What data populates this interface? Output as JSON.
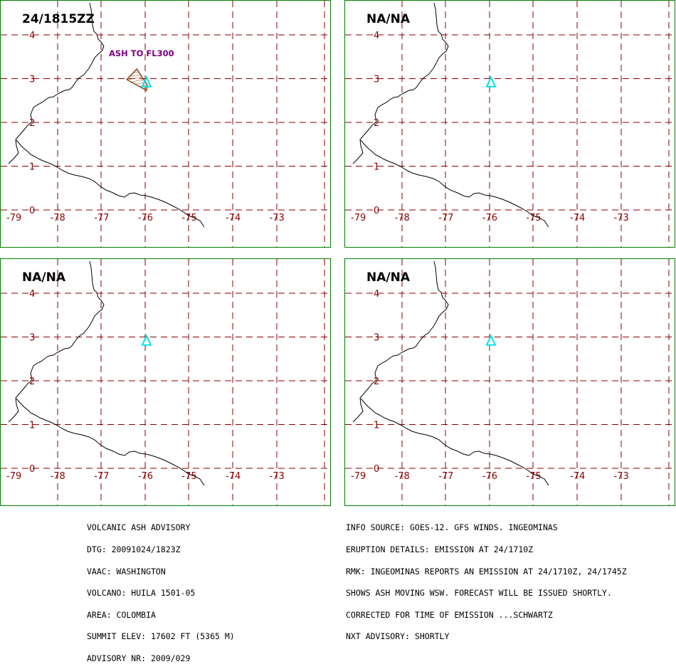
{
  "map": {
    "x_ticks": [
      "-79",
      "-78",
      "-77",
      "-76",
      "-75",
      "-74",
      "-73"
    ],
    "y_ticks": [
      "0",
      "1",
      "2",
      "3",
      "4"
    ],
    "lon_range": [
      -79,
      -72.3
    ],
    "lat_range": [
      -0.15,
      4.8
    ],
    "volcano": {
      "lon": -76.03,
      "lat": 2.93
    },
    "ash_polygon": [
      [
        -76.4,
        2.98
      ],
      [
        -76.17,
        3.22
      ],
      [
        -75.93,
        2.85
      ],
      [
        -75.95,
        2.73
      ]
    ]
  },
  "panels": [
    {
      "title": "24/1815ZZ",
      "ash_label": "ASH TO FL300",
      "show_ash": true
    },
    {
      "title": "NA/NA",
      "show_ash": false
    },
    {
      "title": "NA/NA",
      "show_ash": false
    },
    {
      "title": "NA/NA",
      "show_ash": false
    }
  ],
  "advisory": {
    "left": [
      "VOLCANIC ASH ADVISORY",
      "DTG: 20091024/1823Z",
      "VAAC: WASHINGTON",
      "VOLCANO: HUILA 1501-05",
      "AREA: COLOMBIA",
      "SUMMIT ELEV: 17602 FT (5365 M)",
      "ADVISORY NR: 2009/029"
    ],
    "right": [
      "INFO SOURCE: GOES-12. GFS WINDS. INGEOMINAS",
      "ERUPTION DETAILS: EMISSION AT 24/1710Z",
      "RMK: INGEOMINAS REPORTS AN EMISSION AT 24/1710Z, 24/1745Z",
      "SHOWS ASH MOVING WSW. FORECAST WILL BE ISSUED SHORTLY.",
      "CORRECTED FOR TIME OF EMISSION ...SCHWARTZ",
      "NXT ADVISORY: SHORTLY"
    ]
  },
  "colors": {
    "border": "#008000",
    "grid": "#8b0000",
    "coast": "#000000",
    "volcano": "#00e5e5",
    "ash_outline": "#8b4513",
    "ash_label": "#800080"
  }
}
